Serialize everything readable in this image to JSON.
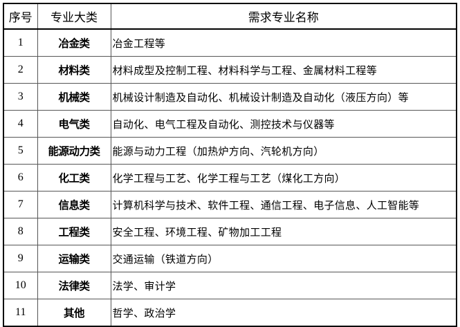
{
  "table": {
    "headers": [
      "序号",
      "专业大类",
      "需求专业名称"
    ],
    "rows": [
      {
        "no": "1",
        "category": "冶金类",
        "majors": "冶金工程等"
      },
      {
        "no": "2",
        "category": "材料类",
        "majors": "材料成型及控制工程、材料科学与工程、金属材料工程等"
      },
      {
        "no": "3",
        "category": "机械类",
        "majors": "机械设计制造及自动化、机械设计制造及自动化（液压方向）等"
      },
      {
        "no": "4",
        "category": "电气类",
        "majors": "自动化、电气工程及自动化、测控技术与仪器等"
      },
      {
        "no": "5",
        "category": "能源动力类",
        "majors": "能源与动力工程（加热炉方向、汽轮机方向）"
      },
      {
        "no": "6",
        "category": "化工类",
        "majors": "化学工程与工艺、化学工程与工艺（煤化工方向）"
      },
      {
        "no": "7",
        "category": "信息类",
        "majors": "计算机科学与技术、软件工程、通信工程、电子信息、人工智能等"
      },
      {
        "no": "8",
        "category": "工程类",
        "majors": "安全工程、环境工程、矿物加工工程"
      },
      {
        "no": "9",
        "category": "运输类",
        "majors": "交通运输（铁道方向）"
      },
      {
        "no": "10",
        "category": "法律类",
        "majors": "法学、审计学"
      },
      {
        "no": "11",
        "category": "其他",
        "majors": "哲学、政治学"
      }
    ]
  }
}
